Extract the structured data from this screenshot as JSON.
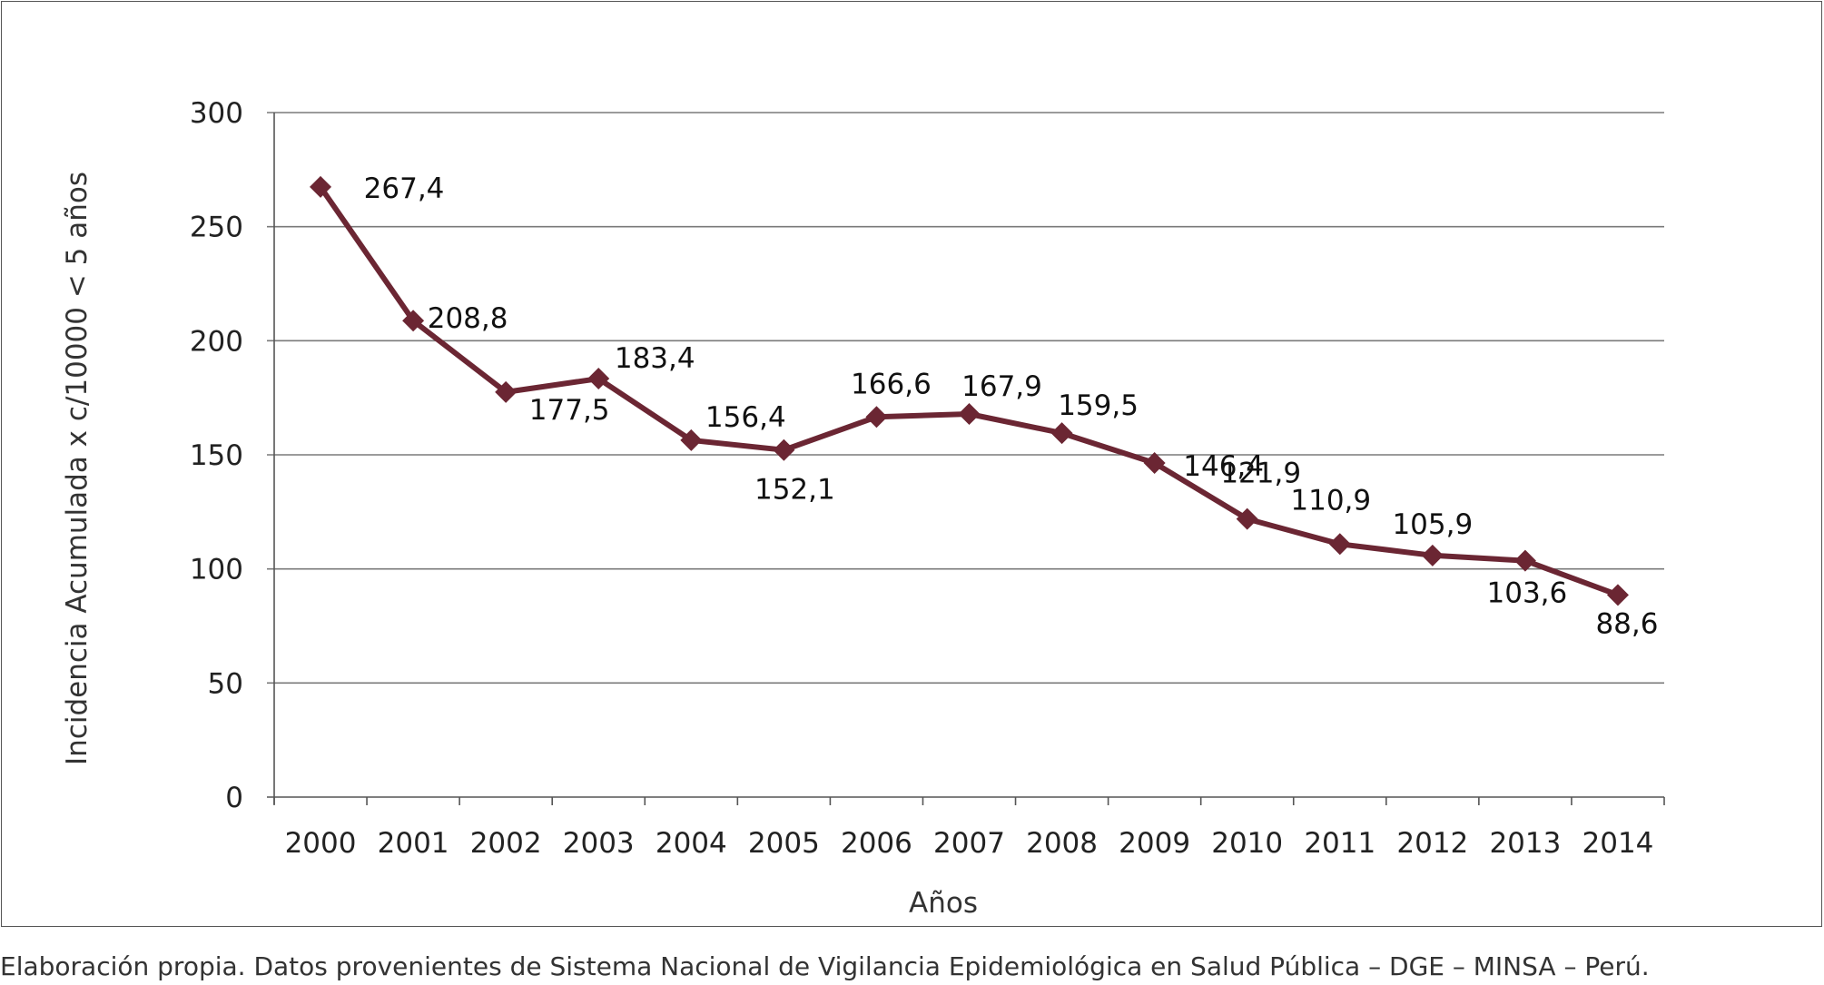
{
  "chart_data": {
    "type": "line",
    "x": [
      "2000",
      "2001",
      "2002",
      "2003",
      "2004",
      "2005",
      "2006",
      "2007",
      "2008",
      "2009",
      "2010",
      "2011",
      "2012",
      "2013",
      "2014"
    ],
    "values": [
      267.4,
      208.8,
      177.5,
      183.4,
      156.4,
      152.1,
      166.6,
      167.9,
      159.5,
      146.4,
      121.9,
      110.9,
      105.9,
      103.6,
      88.6
    ],
    "data_labels": [
      "267,4",
      "208,8",
      "177,5",
      "183,4",
      "156,4",
      "152,1",
      "166,6",
      "167,9",
      "159,5",
      "146,4",
      "121,9",
      "110,9",
      "105,9",
      "103,6",
      "88,6"
    ],
    "xlabel": "Años",
    "ylabel": "Incidencia Acumulada x c/10000 < 5 años",
    "ylim": [
      0,
      300
    ],
    "yticks": [
      0,
      50,
      100,
      150,
      200,
      250,
      300
    ],
    "grid": true,
    "marker": "diamond",
    "line_color": "#6b2633",
    "grid_color": "#7a7a7a"
  },
  "source_note": "Elaboración propia. Datos provenientes de Sistema Nacional de Vigilancia Epidemiológica en Salud Pública – DGE – MINSA – Perú."
}
